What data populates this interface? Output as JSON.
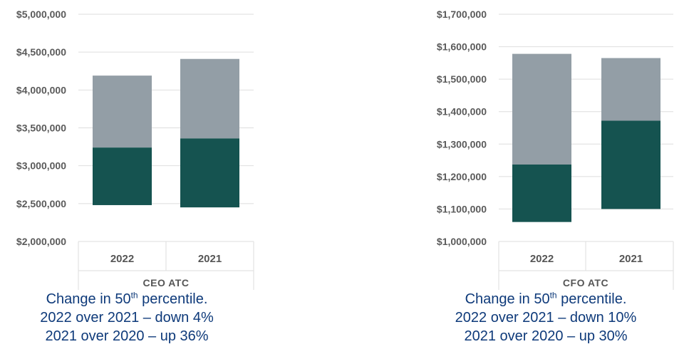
{
  "chart_data": [
    {
      "type": "bar",
      "subtype": "floating-stacked",
      "group_label": "CEO ATC",
      "categories": [
        "2022",
        "2021"
      ],
      "ylim": [
        2000000,
        5000000
      ],
      "yticks": [
        2000000,
        2500000,
        3000000,
        3500000,
        4000000,
        4500000,
        5000000
      ],
      "ytick_labels": [
        "$2,000,000",
        "$2,500,000",
        "$3,000,000",
        "$3,500,000",
        "$4,000,000",
        "$4,500,000",
        "$5,000,000"
      ],
      "bars": [
        {
          "category": "2022",
          "low": 2480000,
          "mid": 3240000,
          "high": 4190000
        },
        {
          "category": "2021",
          "low": 2450000,
          "mid": 3360000,
          "high": 4410000
        }
      ],
      "colors": {
        "lower": "#155350",
        "upper": "#939ea6"
      },
      "grid": true
    },
    {
      "type": "bar",
      "subtype": "floating-stacked",
      "group_label": "CFO ATC",
      "categories": [
        "2022",
        "2021"
      ],
      "ylim": [
        1000000,
        1700000
      ],
      "yticks": [
        1000000,
        1100000,
        1200000,
        1300000,
        1400000,
        1500000,
        1600000,
        1700000
      ],
      "ytick_labels": [
        "$1,000,000",
        "$1,100,000",
        "$1,200,000",
        "$1,300,000",
        "$1,400,000",
        "$1,500,000",
        "$1,600,000",
        "$1,700,000"
      ],
      "bars": [
        {
          "category": "2022",
          "low": 1060000,
          "mid": 1237000,
          "high": 1578000
        },
        {
          "category": "2021",
          "low": 1100000,
          "mid": 1372000,
          "high": 1565000
        }
      ],
      "colors": {
        "lower": "#155350",
        "upper": "#939ea6"
      },
      "grid": true
    }
  ],
  "captions": [
    {
      "line1_pre": "Change in 50",
      "line1_sup": "th",
      "line1_post": " percentile.",
      "line2": "2022 over 2021 – down 4%",
      "line3": "2021 over 2020 – up 36%"
    },
    {
      "line1_pre": "Change in 50",
      "line1_sup": "th",
      "line1_post": " percentile.",
      "line2": "2022 over 2021 – down 10%",
      "line3": "2021 over 2020 – up 30%"
    }
  ]
}
